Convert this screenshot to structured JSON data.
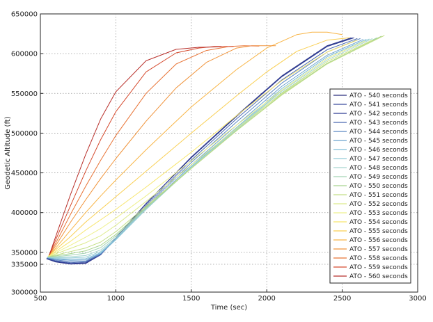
{
  "chart_data": {
    "type": "line",
    "title": "",
    "xlabel": "Time (sec)",
    "ylabel": "Geodetic Altitude (ft)",
    "xlim": [
      500,
      3000
    ],
    "ylim": [
      300000,
      650000
    ],
    "x_ticks": [
      500,
      1000,
      1500,
      2000,
      2500,
      3000
    ],
    "y_ticks": [
      300000,
      335000,
      350000,
      400000,
      450000,
      500000,
      550000,
      600000,
      650000
    ],
    "grid": true,
    "legend_position": "right",
    "series": [
      {
        "name": "ATO - 540 seconds",
        "color": "#2a2f7e",
        "x": [
          540,
          600,
          700,
          800,
          900,
          1000,
          1200,
          1500,
          1800,
          2100,
          2400,
          2560
        ],
        "y": [
          342000,
          338000,
          335200,
          336000,
          347000,
          368000,
          411000,
          470000,
          522000,
          572000,
          610000,
          620000
        ]
      },
      {
        "name": "ATO - 541 seconds",
        "color": "#3a4a9e",
        "x": [
          541,
          600,
          700,
          800,
          900,
          1000,
          1200,
          1500,
          1800,
          2100,
          2400,
          2570
        ],
        "y": [
          342000,
          338500,
          335500,
          336500,
          347000,
          368000,
          411000,
          469500,
          521500,
          571500,
          609500,
          620000
        ]
      },
      {
        "name": "ATO - 542 seconds",
        "color": "#2f3c94",
        "x": [
          542,
          600,
          700,
          800,
          900,
          1000,
          1200,
          1500,
          1800,
          2100,
          2400,
          2580
        ],
        "y": [
          342500,
          339000,
          336000,
          337000,
          347500,
          368500,
          411500,
          469000,
          521000,
          571000,
          609000,
          620000
        ]
      },
      {
        "name": "ATO - 543 seconds",
        "color": "#4a68b0",
        "x": [
          543,
          600,
          700,
          800,
          900,
          1000,
          1200,
          1500,
          1800,
          2100,
          2400,
          2600
        ],
        "y": [
          343000,
          339500,
          337000,
          338000,
          347500,
          367000,
          409000,
          466000,
          518000,
          567000,
          605000,
          619000
        ]
      },
      {
        "name": "ATO - 544 seconds",
        "color": "#5a86c2",
        "x": [
          544,
          600,
          700,
          800,
          900,
          1000,
          1200,
          1500,
          1800,
          2100,
          2400,
          2620
        ],
        "y": [
          343000,
          340500,
          338500,
          339000,
          348000,
          366500,
          407000,
          463000,
          514000,
          563000,
          602000,
          619000
        ]
      },
      {
        "name": "ATO - 545 seconds",
        "color": "#6aa2ce",
        "x": [
          545,
          600,
          700,
          800,
          900,
          1000,
          1200,
          1500,
          1800,
          2100,
          2400,
          2640
        ],
        "y": [
          343500,
          341500,
          340000,
          340500,
          348500,
          366000,
          405000,
          460000,
          510000,
          559000,
          598000,
          618000
        ]
      },
      {
        "name": "ATO - 546 seconds",
        "color": "#7dbcd6",
        "x": [
          546,
          600,
          700,
          800,
          900,
          1000,
          1200,
          1500,
          1800,
          2100,
          2400,
          2660
        ],
        "y": [
          343500,
          342000,
          341500,
          342000,
          349500,
          366000,
          404000,
          458000,
          507000,
          556000,
          596000,
          618000
        ]
      },
      {
        "name": "ATO - 547 seconds",
        "color": "#92cbd6",
        "x": [
          547,
          600,
          700,
          800,
          900,
          1000,
          1200,
          1500,
          1800,
          2100,
          2400,
          2680
        ],
        "y": [
          344000,
          343000,
          343000,
          344000,
          351000,
          367000,
          404000,
          457000,
          506000,
          554000,
          594000,
          618500
        ]
      },
      {
        "name": "ATO - 548 seconds",
        "color": "#a6d5cf",
        "x": [
          548,
          600,
          700,
          800,
          900,
          1000,
          1200,
          1500,
          1800,
          2100,
          2400,
          2700
        ],
        "y": [
          344000,
          343500,
          344500,
          346000,
          353000,
          368500,
          404500,
          456500,
          505000,
          553000,
          592000,
          619000
        ]
      },
      {
        "name": "ATO - 549 seconds",
        "color": "#a3d4b4",
        "x": [
          549,
          600,
          700,
          800,
          900,
          1000,
          1200,
          1500,
          1800,
          2100,
          2400,
          2730
        ],
        "y": [
          344500,
          344500,
          346500,
          349000,
          356000,
          370500,
          405500,
          456000,
          504000,
          551000,
          590000,
          620000
        ]
      },
      {
        "name": "ATO - 550 seconds",
        "color": "#a8d48f",
        "x": [
          550,
          600,
          700,
          800,
          900,
          1000,
          1200,
          1500,
          1800,
          2100,
          2400,
          2760
        ],
        "y": [
          344500,
          345500,
          348500,
          352000,
          359000,
          372500,
          406500,
          455500,
          503000,
          549000,
          588000,
          622000
        ]
      },
      {
        "name": "ATO - 551 seconds",
        "color": "#c3df86",
        "x": [
          551,
          600,
          700,
          800,
          900,
          1000,
          1200,
          1500,
          1800,
          2100,
          2400,
          2780
        ],
        "y": [
          345000,
          346500,
          351000,
          355500,
          363000,
          376000,
          408000,
          456000,
          503000,
          548000,
          587000,
          623000
        ]
      },
      {
        "name": "ATO - 552 seconds",
        "color": "#dcea8a",
        "x": [
          552,
          600,
          700,
          800,
          900,
          1000,
          1200,
          1500,
          1800,
          2100,
          2400,
          2700
        ],
        "y": [
          345000,
          348000,
          355000,
          362000,
          371000,
          384000,
          414000,
          460000,
          506000,
          550000,
          590000,
          617000
        ]
      },
      {
        "name": "ATO - 553 seconds",
        "color": "#eef08c",
        "x": [
          553,
          600,
          700,
          800,
          900,
          1000,
          1200,
          1500,
          1800,
          2100,
          2400,
          2650
        ],
        "y": [
          345500,
          349500,
          359000,
          369000,
          380000,
          393000,
          421000,
          465000,
          510000,
          554000,
          594000,
          616000
        ]
      },
      {
        "name": "ATO - 554 seconds",
        "color": "#f7e56c",
        "x": [
          554,
          600,
          700,
          800,
          900,
          1000,
          1200,
          1500,
          1800,
          2100,
          2400,
          2600
        ],
        "y": [
          345500,
          351000,
          364000,
          378000,
          391000,
          404000,
          432000,
          476000,
          522000,
          566000,
          602000,
          617000
        ]
      },
      {
        "name": "ATO - 555 seconds",
        "color": "#f9cf52",
        "x": [
          555,
          600,
          700,
          800,
          900,
          1000,
          1200,
          1500,
          1800,
          2000,
          2200,
          2400,
          2550
        ],
        "y": [
          346000,
          353000,
          370000,
          388000,
          404000,
          420000,
          452000,
          500000,
          547000,
          577000,
          603000,
          617000,
          620000
        ]
      },
      {
        "name": "ATO - 556 seconds",
        "color": "#f8b444",
        "x": [
          556,
          600,
          700,
          800,
          900,
          1000,
          1200,
          1500,
          1800,
          2000,
          2200,
          2300,
          2400,
          2500
        ],
        "y": [
          346000,
          355000,
          378000,
          400000,
          421000,
          441000,
          479000,
          533000,
          580000,
          607000,
          624000,
          627000,
          627000,
          624000
        ]
      },
      {
        "name": "ATO - 557 seconds",
        "color": "#f0933a",
        "x": [
          557,
          600,
          700,
          800,
          900,
          1000,
          1200,
          1400,
          1600,
          1800,
          1900,
          2000,
          2060
        ],
        "y": [
          346500,
          358000,
          388000,
          416000,
          443000,
          468000,
          515000,
          557000,
          589000,
          607000,
          610000,
          610000,
          610000
        ]
      },
      {
        "name": "ATO - 558 seconds",
        "color": "#e87335",
        "x": [
          558,
          600,
          700,
          800,
          900,
          1000,
          1200,
          1400,
          1600,
          1750,
          1850,
          1950
        ],
        "y": [
          346500,
          361000,
          398000,
          433000,
          466000,
          497000,
          550000,
          587000,
          604000,
          609000,
          610000,
          609500
        ]
      },
      {
        "name": "ATO - 559 seconds",
        "color": "#d54a2e",
        "x": [
          559,
          600,
          700,
          800,
          900,
          1000,
          1200,
          1400,
          1550,
          1650,
          1780
        ],
        "y": [
          347000,
          365000,
          409000,
          452000,
          492000,
          527000,
          577000,
          601000,
          607000,
          609000,
          609000
        ]
      },
      {
        "name": "ATO - 560 seconds",
        "color": "#b82f2a",
        "x": [
          560,
          600,
          700,
          800,
          900,
          1000,
          1200,
          1400,
          1550,
          1700
        ],
        "y": [
          347000,
          369000,
          423000,
          473000,
          518000,
          552000,
          591000,
          605500,
          608000,
          608500
        ]
      }
    ]
  }
}
